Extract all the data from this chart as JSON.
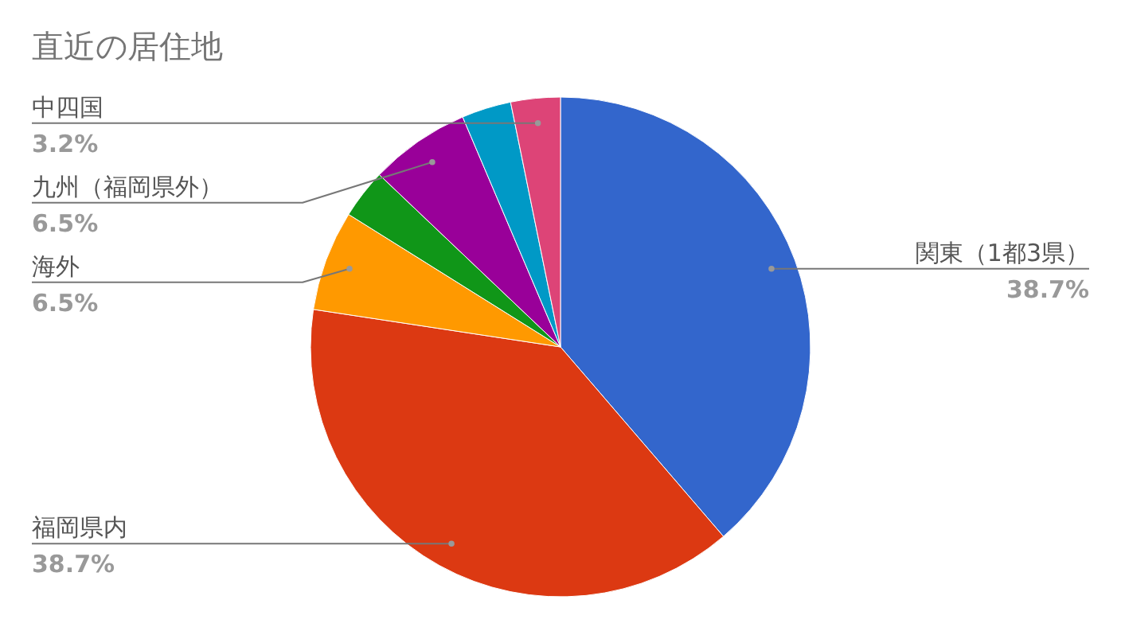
{
  "chart_data": {
    "type": "pie",
    "title": "直近の居住地",
    "categories": [
      "関東（1都3県）",
      "福岡県内",
      "海外",
      null,
      "九州（福岡県外）",
      null,
      "中四国"
    ],
    "values": [
      38.7,
      38.7,
      6.5,
      3.2,
      6.5,
      3.2,
      3.2
    ],
    "value_labels": [
      "38.7%",
      "38.7%",
      "6.5%",
      null,
      "6.5%",
      null,
      "3.2%"
    ],
    "colors": [
      "#3366cc",
      "#dc3912",
      "#ff9900",
      "#109618",
      "#990099",
      "#0099c6",
      "#dd4477"
    ]
  }
}
